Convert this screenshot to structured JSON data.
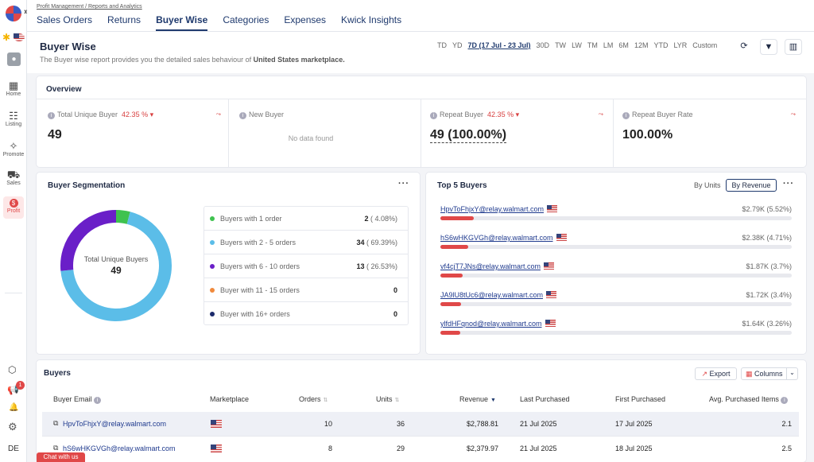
{
  "app": {
    "breadcrumb": "Profit Management / Reports and Analytics",
    "chat_label": "Chat with us",
    "avatar_initials": "DE",
    "notification_count": "1"
  },
  "nav": {
    "tabs": [
      "Sales Orders",
      "Returns",
      "Buyer Wise",
      "Categories",
      "Expenses",
      "Kwick Insights"
    ],
    "active_tab": "Buyer Wise"
  },
  "rail": {
    "items": [
      "Home",
      "Listing",
      "Promote",
      "Sales",
      "Profit"
    ],
    "active": "Profit"
  },
  "header": {
    "title": "Buyer Wise",
    "subtitle_prefix": "The Buyer wise report provides you the detailed sales behaviour of ",
    "subtitle_market": "United States marketplace.",
    "ranges": [
      "TD",
      "YD",
      "7D (17 Jul - 23 Jul)",
      "30D",
      "TW",
      "LW",
      "TM",
      "LM",
      "6M",
      "12M",
      "YTD",
      "LYR",
      "Custom"
    ],
    "active_range": "7D (17 Jul - 23 Jul)"
  },
  "overview": {
    "title": "Overview",
    "metrics": [
      {
        "label": "Total Unique Buyer",
        "change": "42.35 % ▾",
        "value": "49"
      },
      {
        "label": "New Buyer",
        "change": "",
        "value": "",
        "empty": "No data found"
      },
      {
        "label": "Repeat Buyer",
        "change": "42.35 % ▾",
        "value": "49 (100.00%)"
      },
      {
        "label": "Repeat Buyer Rate",
        "change": "",
        "value": "100.00%"
      }
    ]
  },
  "segmentation": {
    "title": "Buyer Segmentation",
    "center_label": "Total Unique Buyers",
    "center_value": "49",
    "rows": [
      {
        "label": "Buyers with 1 order",
        "count": "2",
        "pct": "( 4.08%)",
        "share": 4.08,
        "color": "#3fc24f"
      },
      {
        "label": "Buyers with 2 - 5 orders",
        "count": "34",
        "pct": "( 69.39%)",
        "share": 69.39,
        "color": "#5bbde8"
      },
      {
        "label": "Buyers with 6 - 10 orders",
        "count": "13",
        "pct": "( 26.53%)",
        "share": 26.53,
        "color": "#6a1fc8"
      },
      {
        "label": "Buyer with 11 - 15 orders",
        "count": "0",
        "pct": "",
        "share": 0,
        "color": "#f08a3c"
      },
      {
        "label": "Buyer with 16+ orders",
        "count": "0",
        "pct": "",
        "share": 0,
        "color": "#1b2a6b"
      }
    ]
  },
  "top5": {
    "title": "Top 5 Buyers",
    "toggle": [
      "By Units",
      "By Revenue"
    ],
    "active_toggle": "By Revenue",
    "buyers": [
      {
        "email": "HpvToFhjxY@relay.walmart.com",
        "revenue": "$2.79K (5.52%)",
        "share": 5.52
      },
      {
        "email": "hS6wHKGVGh@relay.walmart.com",
        "revenue": "$2.38K (4.71%)",
        "share": 4.71
      },
      {
        "email": "vf4cjT7JNs@relay.walmart.com",
        "revenue": "$1.87K (3.7%)",
        "share": 3.7
      },
      {
        "email": "JA9lU8tUc6@relay.walmart.com",
        "revenue": "$1.72K (3.4%)",
        "share": 3.4
      },
      {
        "email": "ylfdHFqnod@relay.walmart.com",
        "revenue": "$1.64K (3.26%)",
        "share": 3.26
      }
    ]
  },
  "buyers_table": {
    "title": "Buyers",
    "export_label": "Export",
    "columns_label": "Columns",
    "headers": [
      "Buyer Email",
      "Marketplace",
      "Orders",
      "Units",
      "Revenue",
      "Last Purchased",
      "First Purchased",
      "Avg. Purchased Items"
    ],
    "rows": [
      {
        "email": "HpvToFhjxY@relay.walmart.com",
        "orders": "10",
        "units": "36",
        "revenue": "$2,788.81",
        "last": "21 Jul 2025",
        "first": "17 Jul 2025",
        "avg": "2.1"
      },
      {
        "email": "hS6wHKGVGh@relay.walmart.com",
        "orders": "8",
        "units": "29",
        "revenue": "$2,379.97",
        "last": "21 Jul 2025",
        "first": "18 Jul 2025",
        "avg": "2.5"
      }
    ]
  }
}
